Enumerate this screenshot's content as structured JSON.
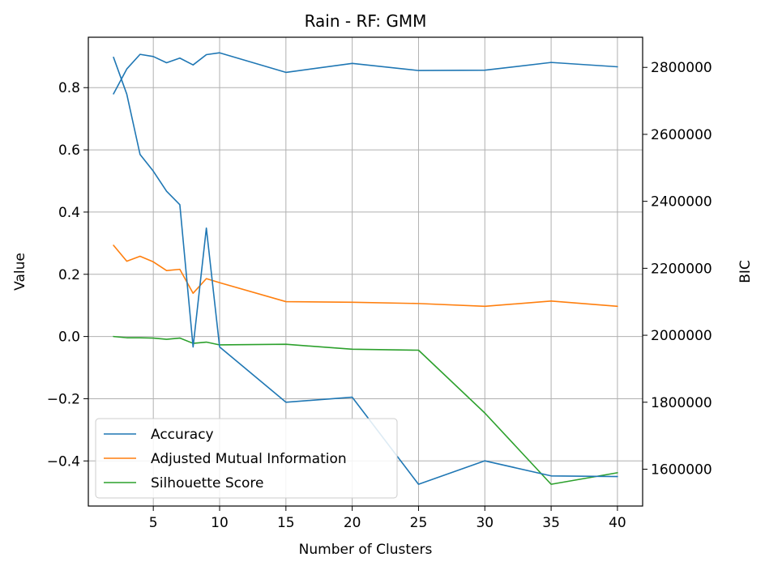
{
  "chart_data": {
    "type": "line",
    "title": "Rain - RF: GMM",
    "xlabel": "Number of Clusters",
    "ylabel": "Value",
    "y2label": "BIC",
    "x": [
      2,
      3,
      4,
      5,
      6,
      7,
      8,
      9,
      10,
      15,
      20,
      25,
      30,
      35,
      40
    ],
    "xticks": [
      5,
      10,
      15,
      20,
      25,
      30,
      35,
      40
    ],
    "xlim": [
      0.1,
      41.9
    ],
    "ylim": [
      -0.545,
      0.962
    ],
    "yticks": [
      -0.4,
      -0.2,
      0.0,
      0.2,
      0.4,
      0.6,
      0.8
    ],
    "y2lim": [
      1490000,
      2890000
    ],
    "y2ticks": [
      1600000,
      1800000,
      2000000,
      2200000,
      2400000,
      2600000,
      2800000
    ],
    "grid": true,
    "legend_position": "lower-left",
    "series": [
      {
        "name": "Accuracy",
        "axis": "left",
        "color": "#1f77b4",
        "values": [
          0.78,
          0.86,
          0.907,
          0.9,
          0.88,
          0.895,
          0.873,
          0.906,
          0.912,
          0.849,
          0.878,
          0.855,
          0.856,
          0.881,
          0.867
        ]
      },
      {
        "name": "Adjusted Mutual Information",
        "axis": "left",
        "color": "#ff7f0e",
        "values": [
          0.293,
          0.242,
          0.258,
          0.24,
          0.212,
          0.216,
          0.139,
          0.186,
          0.173,
          0.112,
          0.11,
          0.106,
          0.097,
          0.114,
          0.097
        ]
      },
      {
        "name": "Silhouette Score",
        "axis": "left",
        "color": "#2ca02c",
        "values": [
          0.0,
          -0.004,
          -0.004,
          -0.005,
          -0.009,
          -0.005,
          -0.022,
          -0.018,
          -0.027,
          -0.025,
          -0.041,
          -0.044,
          -0.246,
          -0.475,
          -0.438
        ]
      },
      {
        "name": "",
        "axis": "right",
        "color": "#1f77b4",
        "values": [
          2830000,
          2720000,
          2540000,
          2490000,
          2430000,
          2390000,
          1965000,
          2320000,
          1965000,
          1800000,
          1815000,
          1555000,
          1625000,
          1580000,
          1578000
        ]
      }
    ],
    "legend": [
      "Accuracy",
      "Adjusted Mutual Information",
      "Silhouette Score"
    ]
  }
}
